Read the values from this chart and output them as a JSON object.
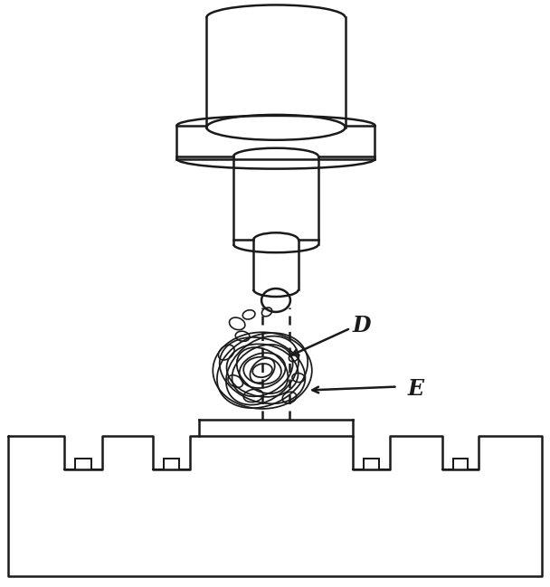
{
  "bg_color": "#ffffff",
  "line_color": "#1a1a1a",
  "line_width": 1.8,
  "fig_width": 6.08,
  "fig_height": 6.49,
  "label_D": "D",
  "label_E": "E"
}
